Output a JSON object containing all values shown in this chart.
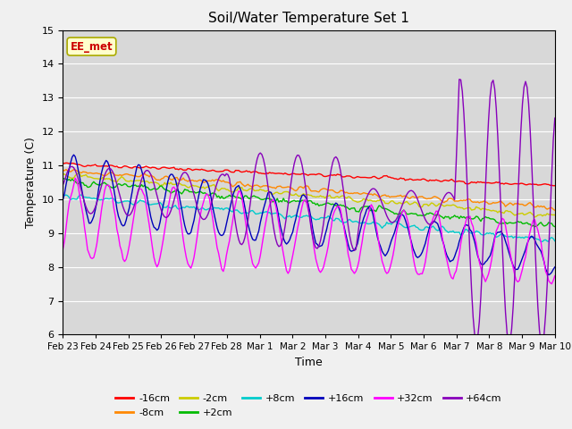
{
  "title": "Soil/Water Temperature Set 1",
  "xlabel": "Time",
  "ylabel": "Temperature (C)",
  "ylim": [
    6.0,
    15.0
  ],
  "yticks": [
    6.0,
    7.0,
    8.0,
    9.0,
    10.0,
    11.0,
    12.0,
    13.0,
    14.0,
    15.0
  ],
  "plot_bg_color": "#d8d8d8",
  "fig_bg_color": "#f0f0f0",
  "annotation_text": "EE_met",
  "annotation_bg": "#ffffcc",
  "annotation_border": "#aaaa00",
  "annotation_text_color": "#cc0000",
  "colors": {
    "-16cm": "#ff0000",
    "-8cm": "#ff8800",
    "-2cm": "#cccc00",
    "+2cm": "#00bb00",
    "+8cm": "#00cccc",
    "+16cm": "#0000bb",
    "+32cm": "#ff00ff",
    "+64cm": "#8800bb"
  },
  "xtick_labels": [
    "Feb 23",
    "Feb 24",
    "Feb 25",
    "Feb 26",
    "Feb 27",
    "Feb 28",
    "Mar 1",
    "Mar 2",
    "Mar 3",
    "Mar 4",
    "Mar 5",
    "Mar 6",
    "Mar 7",
    "Mar 8",
    "Mar 9",
    "Mar 10"
  ],
  "legend_row1": [
    "-16cm",
    "-8cm",
    "-2cm",
    "+2cm",
    "+8cm",
    "+16cm"
  ],
  "legend_row2": [
    "+32cm",
    "+64cm"
  ]
}
